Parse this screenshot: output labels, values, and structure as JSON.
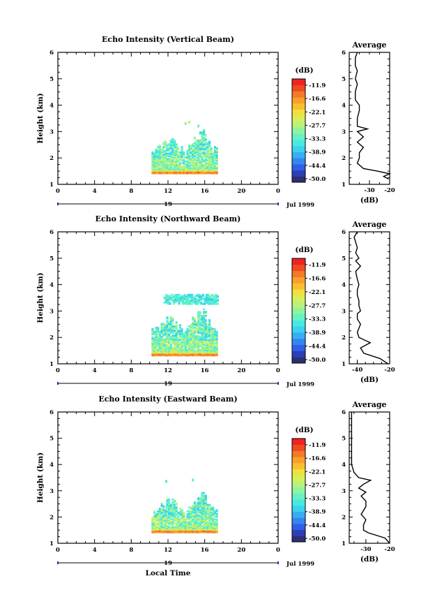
{
  "chart_data": [
    {
      "type": "heatmap",
      "title": "Echo Intensity (Vertical Beam)",
      "ylabel": "Height (km)",
      "xlabel": "",
      "xlim": [
        0,
        24
      ],
      "ylim": [
        1,
        6
      ],
      "x_ticks": [
        "0",
        "4",
        "8",
        "12",
        "16",
        "20",
        "0"
      ],
      "y_ticks": [
        "1",
        "2",
        "3",
        "4",
        "5",
        "6"
      ],
      "date_label": "19",
      "month_label": "Jul 1999",
      "colorbar": {
        "unit": "(dB)",
        "ticks": [
          "-11.9",
          "-16.6",
          "-22.1",
          "-27.7",
          "-33.3",
          "-38.9",
          "-44.4",
          "-50.0"
        ],
        "range": [
          -55.5,
          -6.3
        ]
      },
      "data_region": {
        "t_start": 10.2,
        "t_end": 17.3,
        "h_bottom": 1.4,
        "h_top": 2.6,
        "isolated": [
          [
            13.8,
            3.3
          ],
          [
            14.2,
            3.35
          ],
          [
            15.2,
            3.2
          ],
          [
            16.0,
            2.85
          ],
          [
            14.8,
            2.75
          ]
        ]
      },
      "profile": {
        "title": "Average",
        "xlabel": "(dB)",
        "xlim": [
          -40,
          -20
        ],
        "x_ticks": [
          "-30",
          "-20"
        ],
        "x_tick_values": [
          -30,
          -20
        ],
        "y": [
          1.2,
          1.3,
          1.4,
          1.5,
          1.6,
          1.8,
          2.0,
          2.2,
          2.4,
          2.6,
          2.8,
          3.0,
          3.1,
          3.2,
          3.5,
          3.8,
          4.0,
          4.2,
          4.5,
          4.8,
          5.0,
          5.3,
          5.5,
          5.8,
          6.0
        ],
        "x": [
          -20.5,
          -23,
          -20,
          -26,
          -33,
          -36,
          -35,
          -35,
          -33,
          -36,
          -33,
          -36,
          -31,
          -36,
          -36,
          -35,
          -35,
          -37,
          -37,
          -36,
          -37,
          -36,
          -37,
          -37,
          -36
        ]
      }
    },
    {
      "type": "heatmap",
      "title": "Echo Intensity (Northward Beam)",
      "ylabel": "Height (km)",
      "xlabel": "",
      "xlim": [
        0,
        24
      ],
      "ylim": [
        1,
        6
      ],
      "x_ticks": [
        "0",
        "4",
        "8",
        "12",
        "16",
        "20",
        "0"
      ],
      "y_ticks": [
        "1",
        "2",
        "3",
        "4",
        "5",
        "6"
      ],
      "date_label": "19",
      "month_label": "Jul 1999",
      "colorbar": {
        "unit": "(dB)",
        "ticks": [
          "-11.9",
          "-16.6",
          "-22.1",
          "-27.7",
          "-33.3",
          "-38.9",
          "-44.4",
          "-50.0"
        ],
        "range": [
          -55.5,
          -6.3
        ]
      },
      "data_region": {
        "t_start": 10.2,
        "t_end": 17.3,
        "h_bottom": 1.3,
        "h_top": 2.6,
        "band_bottom": 3.25,
        "band_top": 3.55,
        "band_start": 11.5,
        "band_end": 17.3
      },
      "profile": {
        "title": "Average",
        "xlabel": "(dB)",
        "xlim": [
          -45,
          -20
        ],
        "x_ticks": [
          "-40",
          "-20"
        ],
        "x_tick_values": [
          -40,
          -20
        ],
        "y": [
          1.0,
          1.2,
          1.4,
          1.6,
          1.8,
          2.0,
          2.2,
          2.5,
          2.7,
          2.9,
          3.0,
          3.2,
          3.4,
          3.6,
          3.8,
          4.0,
          4.2,
          4.5,
          4.7,
          4.9,
          5.0,
          5.2,
          5.4,
          5.6,
          5.8,
          6.0
        ],
        "x": [
          -21,
          -26,
          -36,
          -38,
          -32,
          -39,
          -40,
          -38,
          -40,
          -40,
          -38,
          -39,
          -39,
          -40,
          -40,
          -39,
          -40,
          -41,
          -38,
          -41,
          -39,
          -41,
          -40,
          -41,
          -42,
          -40
        ]
      }
    },
    {
      "type": "heatmap",
      "title": "Echo Intensity (Eastward Beam)",
      "ylabel": "Height (km)",
      "xlabel": "Local Time",
      "xlim": [
        0,
        24
      ],
      "ylim": [
        1,
        6
      ],
      "x_ticks": [
        "0",
        "4",
        "8",
        "12",
        "16",
        "20",
        "0"
      ],
      "y_ticks": [
        "1",
        "2",
        "3",
        "4",
        "5",
        "6"
      ],
      "date_label": "19",
      "month_label": "Jul 1999",
      "colorbar": {
        "unit": "(dB)",
        "ticks": [
          "-11.9",
          "-16.6",
          "-22.1",
          "-27.7",
          "-33.3",
          "-38.9",
          "-44.4",
          "-50.0"
        ],
        "range": [
          -55.5,
          -6.3
        ]
      },
      "data_region": {
        "t_start": 10.2,
        "t_end": 17.3,
        "h_bottom": 1.4,
        "h_top": 2.5,
        "isolated": [
          [
            11.7,
            3.35
          ],
          [
            14.6,
            3.4
          ],
          [
            15.6,
            2.8
          ]
        ]
      },
      "profile": {
        "title": "Average",
        "xlabel": "(dB)",
        "xlim": [
          -37,
          -20
        ],
        "x_ticks": [
          "-30",
          "-20"
        ],
        "x_tick_values": [
          -30,
          -20
        ],
        "y": [
          1.0,
          1.2,
          1.4,
          1.5,
          1.7,
          1.9,
          2.1,
          2.4,
          2.6,
          2.8,
          2.95,
          3.1,
          3.25,
          3.4,
          3.5,
          3.7,
          4.0,
          4.5,
          5.0,
          5.5,
          6.0
        ],
        "x": [
          -20,
          -22,
          -29,
          -31,
          -31,
          -30,
          -32,
          -30,
          -30,
          -32,
          -30,
          -33,
          -31,
          -28,
          -33,
          -35,
          -36,
          -36,
          -36,
          -36,
          -36
        ]
      }
    }
  ]
}
